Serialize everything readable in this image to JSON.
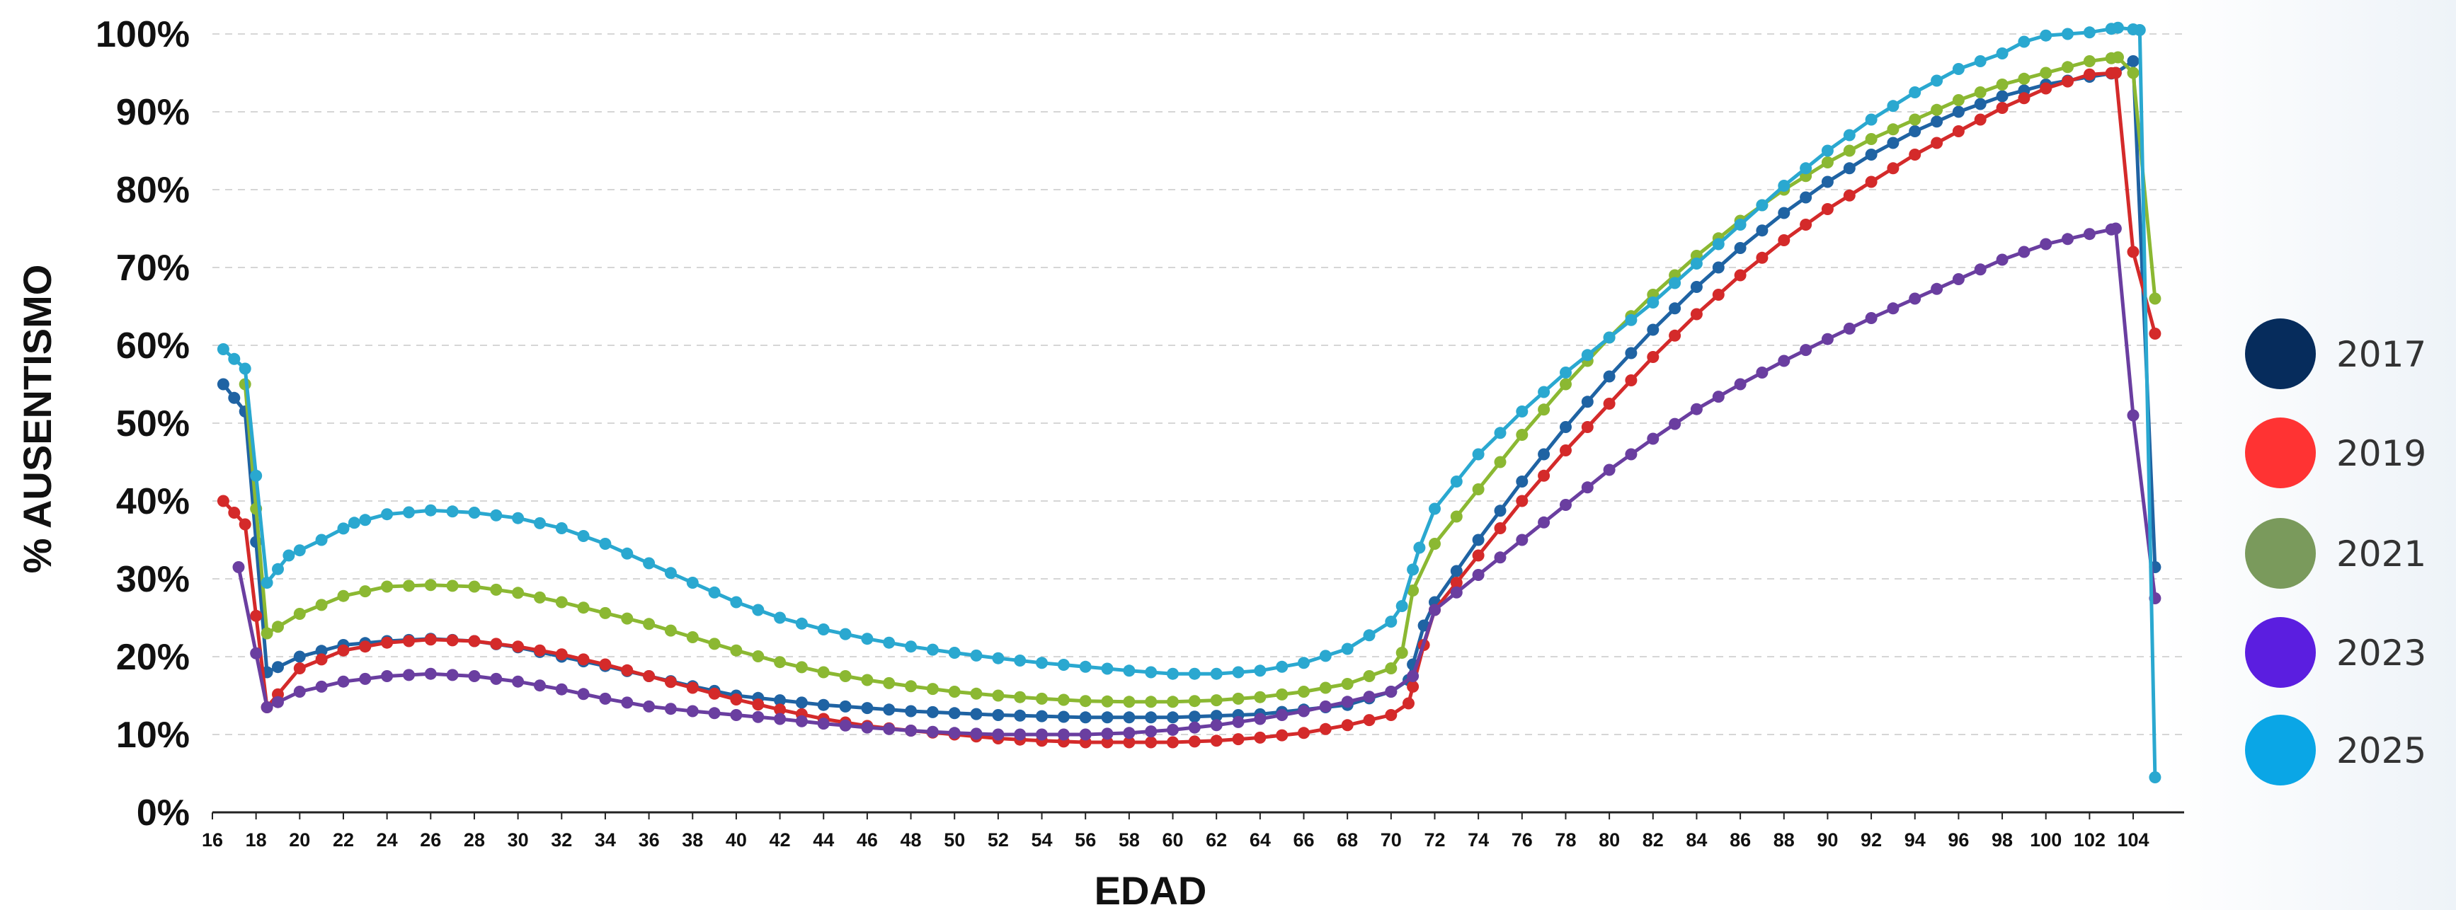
{
  "chart_data": {
    "type": "line",
    "xlabel": "EDAD",
    "ylabel": "% AUSENTISMO",
    "xlim": [
      16,
      105
    ],
    "ylim": [
      0,
      100
    ],
    "x_ticks": [
      16,
      18,
      20,
      22,
      24,
      26,
      28,
      30,
      32,
      34,
      36,
      38,
      40,
      42,
      44,
      46,
      48,
      50,
      52,
      54,
      56,
      58,
      60,
      62,
      64,
      66,
      68,
      70,
      72,
      74,
      76,
      78,
      80,
      82,
      84,
      86,
      88,
      90,
      92,
      94,
      96,
      98,
      100,
      102,
      104
    ],
    "y_ticks": [
      {
        "v": 0,
        "label": "0%"
      },
      {
        "v": 10,
        "label": "10%"
      },
      {
        "v": 20,
        "label": "20%"
      },
      {
        "v": 30,
        "label": "30%"
      },
      {
        "v": 40,
        "label": "40%"
      },
      {
        "v": 50,
        "label": "50%"
      },
      {
        "v": 60,
        "label": "60%"
      },
      {
        "v": 70,
        "label": "70%"
      },
      {
        "v": 80,
        "label": "80%"
      },
      {
        "v": 90,
        "label": "90%"
      },
      {
        "v": 100,
        "label": "100%"
      }
    ],
    "grid": true,
    "legend_position": "right",
    "series": [
      {
        "name": "2017",
        "color": "#1f63a3",
        "legend_color": "#062c5c",
        "anchors": [
          [
            16.5,
            55
          ],
          [
            17.5,
            51.5
          ],
          [
            18.5,
            18
          ],
          [
            20,
            20
          ],
          [
            22,
            21.5
          ],
          [
            24,
            22
          ],
          [
            26,
            22.3
          ],
          [
            28,
            22
          ],
          [
            30,
            21.2
          ],
          [
            32,
            20
          ],
          [
            34,
            18.8
          ],
          [
            36,
            17.5
          ],
          [
            38,
            16.2
          ],
          [
            40,
            15
          ],
          [
            44,
            13.8
          ],
          [
            48,
            13
          ],
          [
            52,
            12.5
          ],
          [
            56,
            12.2
          ],
          [
            60,
            12.2
          ],
          [
            64,
            12.6
          ],
          [
            68,
            13.8
          ],
          [
            70,
            15.5
          ],
          [
            70.8,
            17
          ],
          [
            71.5,
            24
          ],
          [
            72,
            27
          ],
          [
            74,
            35
          ],
          [
            76,
            42.5
          ],
          [
            78,
            49.5
          ],
          [
            80,
            56
          ],
          [
            82,
            62
          ],
          [
            84,
            67.5
          ],
          [
            86,
            72.5
          ],
          [
            88,
            77
          ],
          [
            90,
            81
          ],
          [
            92,
            84.5
          ],
          [
            94,
            87.5
          ],
          [
            96,
            90
          ],
          [
            98,
            92
          ],
          [
            100,
            93.5
          ],
          [
            102,
            94.5
          ],
          [
            103.2,
            95
          ],
          [
            104,
            96.5
          ],
          [
            105,
            31.5
          ]
        ]
      },
      {
        "name": "2019",
        "color": "#d42a2a",
        "legend_color": "#ff3333",
        "anchors": [
          [
            16.5,
            40
          ],
          [
            17.5,
            37
          ],
          [
            18.5,
            13.5
          ],
          [
            20,
            18.5
          ],
          [
            22,
            20.8
          ],
          [
            24,
            21.8
          ],
          [
            26,
            22.2
          ],
          [
            28,
            22
          ],
          [
            30,
            21.3
          ],
          [
            32,
            20.3
          ],
          [
            34,
            19
          ],
          [
            36,
            17.5
          ],
          [
            38,
            16
          ],
          [
            40,
            14.5
          ],
          [
            42,
            13.2
          ],
          [
            44,
            12
          ],
          [
            46,
            11.1
          ],
          [
            48,
            10.5
          ],
          [
            50,
            10
          ],
          [
            52,
            9.5
          ],
          [
            54,
            9.2
          ],
          [
            56,
            9
          ],
          [
            58,
            9
          ],
          [
            60,
            9
          ],
          [
            62,
            9.2
          ],
          [
            64,
            9.6
          ],
          [
            66,
            10.2
          ],
          [
            68,
            11.2
          ],
          [
            70,
            12.5
          ],
          [
            70.8,
            14
          ],
          [
            71.5,
            21.5
          ],
          [
            72,
            26
          ],
          [
            74,
            33
          ],
          [
            76,
            40
          ],
          [
            78,
            46.5
          ],
          [
            80,
            52.5
          ],
          [
            82,
            58.5
          ],
          [
            84,
            64
          ],
          [
            86,
            69
          ],
          [
            88,
            73.5
          ],
          [
            90,
            77.5
          ],
          [
            92,
            81
          ],
          [
            94,
            84.5
          ],
          [
            96,
            87.5
          ],
          [
            98,
            90.5
          ],
          [
            100,
            93
          ],
          [
            102,
            94.8
          ],
          [
            103.2,
            95
          ],
          [
            104,
            72
          ],
          [
            105,
            61.5
          ]
        ]
      },
      {
        "name": "2021",
        "color": "#8bb832",
        "legend_color": "#7a9a5c",
        "anchors": [
          [
            17.5,
            55
          ],
          [
            18.5,
            23
          ],
          [
            20,
            25.5
          ],
          [
            22,
            27.8
          ],
          [
            24,
            29
          ],
          [
            26,
            29.2
          ],
          [
            28,
            29
          ],
          [
            30,
            28.2
          ],
          [
            32,
            27
          ],
          [
            34,
            25.6
          ],
          [
            36,
            24.2
          ],
          [
            38,
            22.5
          ],
          [
            40,
            20.8
          ],
          [
            42,
            19.3
          ],
          [
            44,
            18
          ],
          [
            46,
            17
          ],
          [
            48,
            16.2
          ],
          [
            50,
            15.5
          ],
          [
            52,
            15
          ],
          [
            54,
            14.6
          ],
          [
            56,
            14.3
          ],
          [
            58,
            14.2
          ],
          [
            60,
            14.2
          ],
          [
            62,
            14.4
          ],
          [
            64,
            14.8
          ],
          [
            66,
            15.5
          ],
          [
            68,
            16.5
          ],
          [
            70,
            18.5
          ],
          [
            70.5,
            20.5
          ],
          [
            71,
            28.5
          ],
          [
            72,
            34.5
          ],
          [
            74,
            41.5
          ],
          [
            76,
            48.5
          ],
          [
            78,
            55
          ],
          [
            80,
            61
          ],
          [
            82,
            66.5
          ],
          [
            84,
            71.5
          ],
          [
            86,
            76
          ],
          [
            88,
            80
          ],
          [
            90,
            83.5
          ],
          [
            92,
            86.5
          ],
          [
            94,
            89
          ],
          [
            96,
            91.5
          ],
          [
            98,
            93.5
          ],
          [
            100,
            95
          ],
          [
            102,
            96.5
          ],
          [
            103.3,
            97
          ],
          [
            104,
            95
          ],
          [
            105,
            66
          ]
        ]
      },
      {
        "name": "2023",
        "color": "#6a3ea0",
        "legend_color": "#5b1ee0",
        "anchors": [
          [
            17.2,
            31.5
          ],
          [
            18.5,
            13.5
          ],
          [
            20,
            15.5
          ],
          [
            22,
            16.8
          ],
          [
            24,
            17.5
          ],
          [
            26,
            17.8
          ],
          [
            28,
            17.5
          ],
          [
            30,
            16.8
          ],
          [
            32,
            15.8
          ],
          [
            34,
            14.6
          ],
          [
            36,
            13.6
          ],
          [
            38,
            13
          ],
          [
            40,
            12.5
          ],
          [
            42,
            12
          ],
          [
            44,
            11.4
          ],
          [
            46,
            10.9
          ],
          [
            48,
            10.5
          ],
          [
            50,
            10.2
          ],
          [
            52,
            10
          ],
          [
            54,
            10
          ],
          [
            56,
            10
          ],
          [
            58,
            10.2
          ],
          [
            60,
            10.6
          ],
          [
            62,
            11.2
          ],
          [
            64,
            12
          ],
          [
            66,
            13
          ],
          [
            68,
            14.2
          ],
          [
            70,
            15.5
          ],
          [
            71,
            17.5
          ],
          [
            72,
            26
          ],
          [
            74,
            30.5
          ],
          [
            76,
            35
          ],
          [
            78,
            39.5
          ],
          [
            80,
            44
          ],
          [
            82,
            48
          ],
          [
            84,
            51.8
          ],
          [
            86,
            55
          ],
          [
            88,
            58
          ],
          [
            90,
            60.8
          ],
          [
            92,
            63.5
          ],
          [
            94,
            66
          ],
          [
            96,
            68.5
          ],
          [
            98,
            71
          ],
          [
            100,
            73
          ],
          [
            102,
            74.3
          ],
          [
            103.2,
            75
          ],
          [
            104,
            51
          ],
          [
            105,
            27.5
          ]
        ]
      },
      {
        "name": "2025",
        "color": "#2aa8d0",
        "legend_color": "#0aa6e6",
        "anchors": [
          [
            16.5,
            59.5
          ],
          [
            17.5,
            57
          ],
          [
            18.5,
            29.5
          ],
          [
            19.5,
            33
          ],
          [
            21,
            35
          ],
          [
            22.5,
            37.2
          ],
          [
            24,
            38.3
          ],
          [
            26,
            38.8
          ],
          [
            28,
            38.5
          ],
          [
            30,
            37.8
          ],
          [
            32,
            36.5
          ],
          [
            34,
            34.5
          ],
          [
            36,
            32
          ],
          [
            38,
            29.5
          ],
          [
            40,
            27
          ],
          [
            42,
            25
          ],
          [
            44,
            23.5
          ],
          [
            46,
            22.3
          ],
          [
            48,
            21.3
          ],
          [
            50,
            20.5
          ],
          [
            52,
            19.8
          ],
          [
            54,
            19.2
          ],
          [
            56,
            18.7
          ],
          [
            58,
            18.2
          ],
          [
            60,
            17.8
          ],
          [
            62,
            17.8
          ],
          [
            64,
            18.2
          ],
          [
            66,
            19.2
          ],
          [
            68,
            21
          ],
          [
            70,
            24.5
          ],
          [
            70.5,
            26.5
          ],
          [
            71.3,
            34
          ],
          [
            72,
            39
          ],
          [
            74,
            46
          ],
          [
            76,
            51.5
          ],
          [
            78,
            56.5
          ],
          [
            80,
            61
          ],
          [
            82,
            65.5
          ],
          [
            84,
            70.5
          ],
          [
            86,
            75.5
          ],
          [
            88,
            80.5
          ],
          [
            90,
            85
          ],
          [
            92,
            89
          ],
          [
            94,
            92.5
          ],
          [
            96,
            95.5
          ],
          [
            98,
            97.5
          ],
          [
            99,
            99
          ],
          [
            100,
            99.8
          ],
          [
            102,
            100.2
          ],
          [
            103.3,
            100.8
          ],
          [
            104.3,
            100.5
          ],
          [
            105,
            4.5
          ]
        ]
      }
    ]
  }
}
